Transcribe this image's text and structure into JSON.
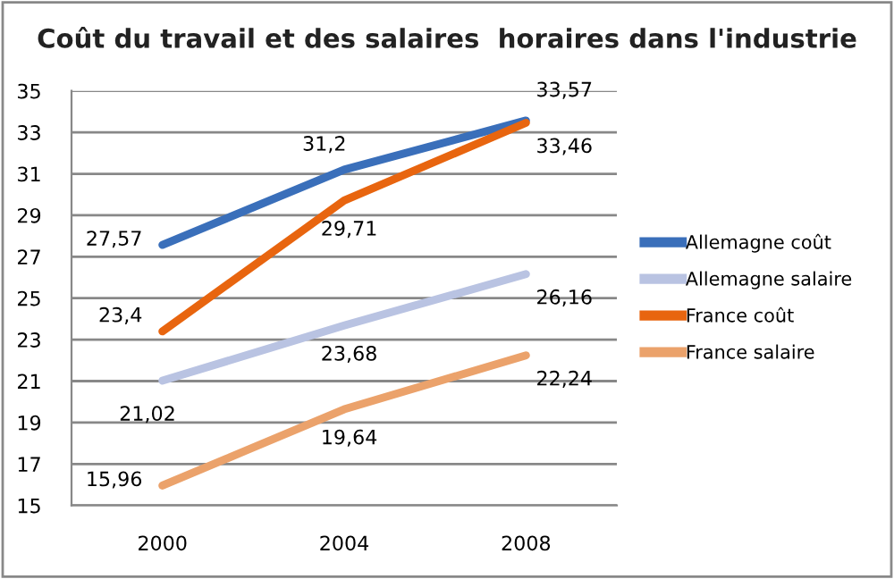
{
  "chart_data": {
    "type": "line",
    "title": "Coût du travail et des salaires  horaires dans l'industrie",
    "categories": [
      "2000",
      "2004",
      "2008"
    ],
    "series": [
      {
        "name": "Allemagne coût",
        "color": "#3a6fba",
        "values": [
          27.57,
          31.2,
          33.57
        ],
        "value_labels": [
          "27,57",
          "31,2",
          "33,57"
        ]
      },
      {
        "name": "Allemagne salaire",
        "color": "#b9c3e2",
        "values": [
          21.02,
          23.68,
          26.16
        ],
        "value_labels": [
          "21,02",
          "23,68",
          "26,16"
        ]
      },
      {
        "name": "France coût",
        "color": "#e8650f",
        "values": [
          23.4,
          29.71,
          33.46
        ],
        "value_labels": [
          "23,4",
          "29,71",
          "33,46"
        ]
      },
      {
        "name": "France salaire",
        "color": "#eba26b",
        "values": [
          15.96,
          19.64,
          22.24
        ],
        "value_labels": [
          "15,96",
          "19,64",
          "22,24"
        ]
      }
    ],
    "ylim": [
      15,
      35
    ],
    "yticks": [
      15,
      17,
      19,
      21,
      23,
      25,
      27,
      29,
      31,
      33,
      35
    ],
    "grid": "y",
    "legend": "right",
    "marker": "none",
    "line_style": "solid"
  }
}
